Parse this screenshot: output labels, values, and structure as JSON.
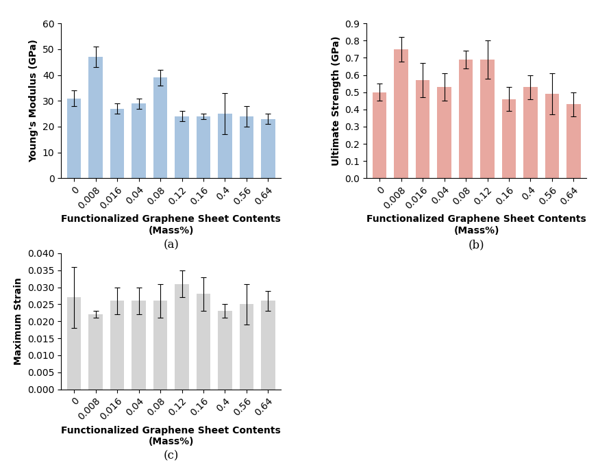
{
  "chart_data": [
    {
      "type": "bar",
      "xlabel": "Functionalized Graphene Sheet Contents\n(Mass%)",
      "ylabel": "Young's Modulus (GPa)",
      "annotation": "(a)",
      "categories": [
        "0",
        "0.008",
        "0.016",
        "0.04",
        "0.08",
        "0.12",
        "0.16",
        "0.4",
        "0.56",
        "0.64"
      ],
      "values": [
        31,
        47,
        27,
        29,
        39,
        24,
        24,
        25,
        24,
        23
      ],
      "errors": [
        3,
        4,
        2,
        2,
        3,
        2,
        1,
        8,
        4,
        2
      ],
      "color": "#a8c4e0",
      "ylim": [
        0,
        60
      ],
      "yticks": [
        0,
        10,
        20,
        30,
        40,
        50,
        60
      ],
      "grid": false
    },
    {
      "type": "bar",
      "xlabel": "Functionalized Graphene Sheet Contents\n(Mass%)",
      "ylabel": "Ultimate Strength (GPa)",
      "annotation": "(b)",
      "categories": [
        "0",
        "0.008",
        "0.016",
        "0.04",
        "0.08",
        "0.12",
        "0.16",
        "0.4",
        "0.56",
        "0.64"
      ],
      "values": [
        0.5,
        0.75,
        0.57,
        0.53,
        0.69,
        0.69,
        0.46,
        0.53,
        0.49,
        0.43
      ],
      "errors": [
        0.05,
        0.07,
        0.1,
        0.08,
        0.05,
        0.11,
        0.07,
        0.07,
        0.12,
        0.07
      ],
      "color": "#e8a8a0",
      "ylim": [
        0.0,
        0.9
      ],
      "yticks": [
        {
          "value": 0,
          "label": "0.0"
        },
        0.1,
        0.2,
        0.3,
        0.4,
        0.5,
        0.6,
        0.7,
        0.8,
        0.9
      ],
      "grid": false
    },
    {
      "type": "bar",
      "xlabel": "Functionalized Graphene Sheet Contents\n(Mass%)",
      "ylabel": "Maximum Strain",
      "annotation": "(c)",
      "categories": [
        "0",
        "0.008",
        "0.016",
        "0.04",
        "0.08",
        "0.12",
        "0.16",
        "0.4",
        "0.56",
        "0.64"
      ],
      "values": [
        0.027,
        0.022,
        0.026,
        0.026,
        0.026,
        0.031,
        0.028,
        0.023,
        0.025,
        0.026
      ],
      "errors": [
        0.009,
        0.001,
        0.004,
        0.004,
        0.005,
        0.004,
        0.005,
        0.002,
        0.006,
        0.003
      ],
      "color": "#d4d4d4",
      "ylim": [
        0,
        0.04
      ],
      "yticks": [
        {
          "value": 0,
          "label": "0.000"
        },
        0.005,
        {
          "value": 0.01,
          "label": "0.010"
        },
        0.015,
        {
          "value": 0.02,
          "label": "0.020"
        },
        0.025,
        {
          "value": 0.03,
          "label": "0.030"
        },
        0.035,
        {
          "value": 0.04,
          "label": "0.040"
        }
      ],
      "grid": false
    }
  ]
}
